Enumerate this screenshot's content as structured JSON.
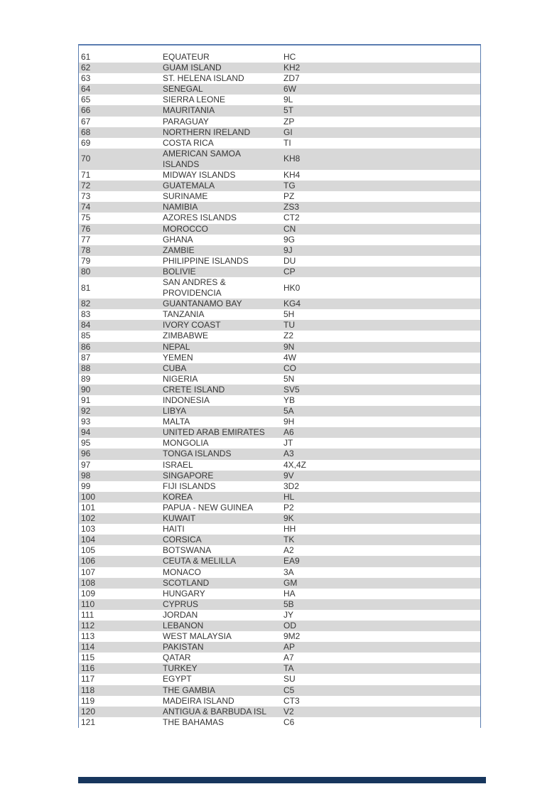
{
  "page": {
    "background_color": "#ffffff"
  },
  "table": {
    "columns": [
      "number",
      "country",
      "prefix"
    ],
    "stripe_color": "#d8d8d8",
    "border_color": "#5a7db0",
    "text_color": "#363636",
    "rows": [
      {
        "number": "61",
        "country": "EQUATEUR",
        "prefix": "HC"
      },
      {
        "number": "62",
        "country": "GUAM ISLAND",
        "prefix": "KH2"
      },
      {
        "number": "63",
        "country": "ST. HELENA ISLAND",
        "prefix": "ZD7"
      },
      {
        "number": "64",
        "country": "SENEGAL",
        "prefix": "6W"
      },
      {
        "number": "65",
        "country": "SIERRA LEONE",
        "prefix": "9L"
      },
      {
        "number": "66",
        "country": "MAURITANIA",
        "prefix": "5T"
      },
      {
        "number": "67",
        "country": "PARAGUAY",
        "prefix": "ZP"
      },
      {
        "number": "68",
        "country": "NORTHERN IRELAND",
        "prefix": "GI"
      },
      {
        "number": "69",
        "country": "COSTA RICA",
        "prefix": "TI"
      },
      {
        "number": "70",
        "country": "AMERICAN SAMOA ISLANDS",
        "prefix": "KH8"
      },
      {
        "number": "71",
        "country": "MIDWAY ISLANDS",
        "prefix": "KH4"
      },
      {
        "number": "72",
        "country": "GUATEMALA",
        "prefix": "TG"
      },
      {
        "number": "73",
        "country": "SURINAME",
        "prefix": "PZ"
      },
      {
        "number": "74",
        "country": "NAMIBIA",
        "prefix": "ZS3"
      },
      {
        "number": "75",
        "country": "AZORES ISLANDS",
        "prefix": "CT2"
      },
      {
        "number": "76",
        "country": "MOROCCO",
        "prefix": "CN"
      },
      {
        "number": "77",
        "country": "GHANA",
        "prefix": "9G"
      },
      {
        "number": "78",
        "country": "ZAMBIE",
        "prefix": "9J"
      },
      {
        "number": "79",
        "country": "PHILIPPINE ISLANDS",
        "prefix": "DU"
      },
      {
        "number": "80",
        "country": "BOLIVIE",
        "prefix": "CP"
      },
      {
        "number": "81",
        "country": "SAN ANDRES & PROVIDENCIA",
        "prefix": "HK0"
      },
      {
        "number": "82",
        "country": "GUANTANAMO BAY",
        "prefix": "KG4"
      },
      {
        "number": "83",
        "country": "TANZANIA",
        "prefix": "5H"
      },
      {
        "number": "84",
        "country": "IVORY COAST",
        "prefix": "TU"
      },
      {
        "number": "85",
        "country": "ZIMBABWE",
        "prefix": "Z2"
      },
      {
        "number": "86",
        "country": "NEPAL",
        "prefix": "9N"
      },
      {
        "number": "87",
        "country": "YEMEN",
        "prefix": "4W"
      },
      {
        "number": "88",
        "country": "CUBA",
        "prefix": "CO"
      },
      {
        "number": "89",
        "country": "NIGERIA",
        "prefix": "5N"
      },
      {
        "number": "90",
        "country": "CRETE ISLAND",
        "prefix": "SV5"
      },
      {
        "number": "91",
        "country": "INDONESIA",
        "prefix": "YB"
      },
      {
        "number": "92",
        "country": "LIBYA",
        "prefix": "5A"
      },
      {
        "number": "93",
        "country": "MALTA",
        "prefix": "9H"
      },
      {
        "number": "94",
        "country": "UNITED ARAB EMIRATES",
        "prefix": "A6"
      },
      {
        "number": "95",
        "country": "MONGOLIA",
        "prefix": "JT"
      },
      {
        "number": "96",
        "country": "TONGA ISLANDS",
        "prefix": "A3"
      },
      {
        "number": "97",
        "country": "ISRAEL",
        "prefix": "4X,4Z"
      },
      {
        "number": "98",
        "country": "SINGAPORE",
        "prefix": "9V"
      },
      {
        "number": "99",
        "country": "FIJI ISLANDS",
        "prefix": "3D2"
      },
      {
        "number": "100",
        "country": "KOREA",
        "prefix": "HL"
      },
      {
        "number": "101",
        "country": "PAPUA - NEW GUINEA",
        "prefix": "P2"
      },
      {
        "number": "102",
        "country": "KUWAIT",
        "prefix": "9K"
      },
      {
        "number": "103",
        "country": "HAITI",
        "prefix": "HH"
      },
      {
        "number": "104",
        "country": "CORSICA",
        "prefix": "TK"
      },
      {
        "number": "105",
        "country": "BOTSWANA",
        "prefix": "A2"
      },
      {
        "number": "106",
        "country": "CEUTA & MELILLA",
        "prefix": "EA9"
      },
      {
        "number": "107",
        "country": "MONACO",
        "prefix": "3A"
      },
      {
        "number": "108",
        "country": "SCOTLAND",
        "prefix": "GM"
      },
      {
        "number": "109",
        "country": "HUNGARY",
        "prefix": "HA"
      },
      {
        "number": "110",
        "country": "CYPRUS",
        "prefix": "5B"
      },
      {
        "number": "111",
        "country": "JORDAN",
        "prefix": "JY"
      },
      {
        "number": "112",
        "country": "LEBANON",
        "prefix": "OD"
      },
      {
        "number": "113",
        "country": "WEST MALAYSIA",
        "prefix": "9M2"
      },
      {
        "number": "114",
        "country": "PAKISTAN",
        "prefix": "AP"
      },
      {
        "number": "115",
        "country": "QATAR",
        "prefix": "A7"
      },
      {
        "number": "116",
        "country": "TURKEY",
        "prefix": "TA"
      },
      {
        "number": "117",
        "country": "EGYPT",
        "prefix": "SU"
      },
      {
        "number": "118",
        "country": "THE GAMBIA",
        "prefix": "C5"
      },
      {
        "number": "119",
        "country": "MADEIRA ISLAND",
        "prefix": "CT3"
      },
      {
        "number": "120",
        "country": "ANTIGUA & BARBUDA ISL",
        "prefix": "V2"
      },
      {
        "number": "121",
        "country": "THE BAHAMAS",
        "prefix": "C6"
      }
    ]
  },
  "footer_bar": {
    "color": "#17365d"
  }
}
